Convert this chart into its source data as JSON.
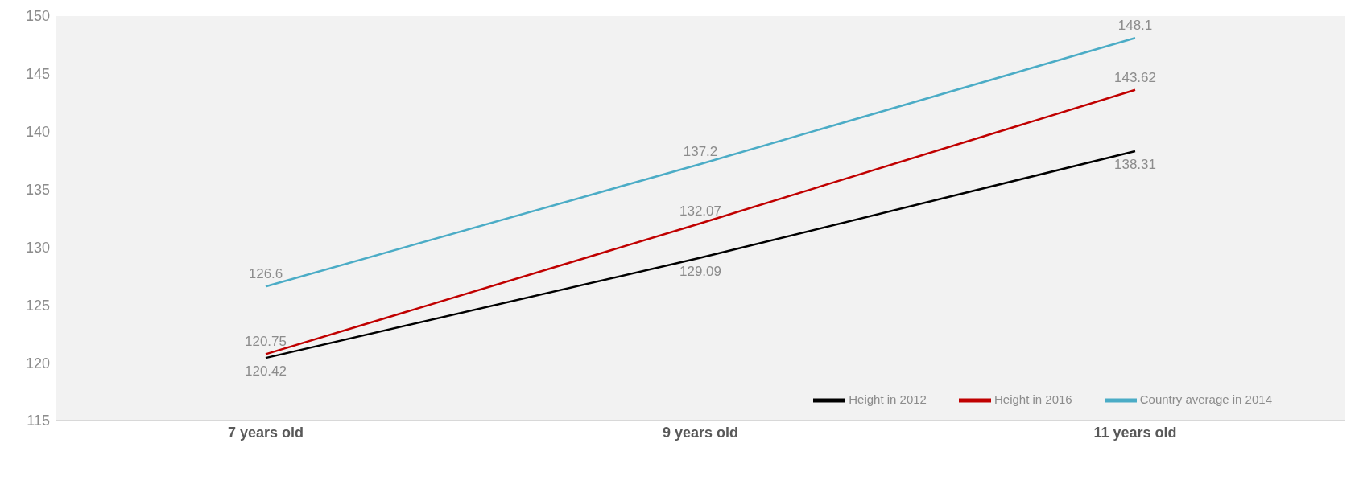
{
  "chart_data": {
    "type": "line",
    "categories": [
      "7 years old",
      "9 years old",
      "11 years old"
    ],
    "series": [
      {
        "name": "Height in 2012",
        "color": "#000000",
        "values": [
          120.42,
          129.09,
          138.31
        ]
      },
      {
        "name": "Height in 2016",
        "color": "#c00000",
        "values": [
          120.75,
          132.07,
          143.62
        ]
      },
      {
        "name": "Country average in 2014",
        "color": "#4bacc6",
        "values": [
          126.6,
          137.2,
          148.1
        ]
      }
    ],
    "ylim": [
      115,
      150
    ],
    "yticks": [
      115,
      120,
      125,
      130,
      135,
      140,
      145,
      150
    ],
    "data_labels": true,
    "legend": "bottom right",
    "marker": "none",
    "line_style": "solid"
  }
}
